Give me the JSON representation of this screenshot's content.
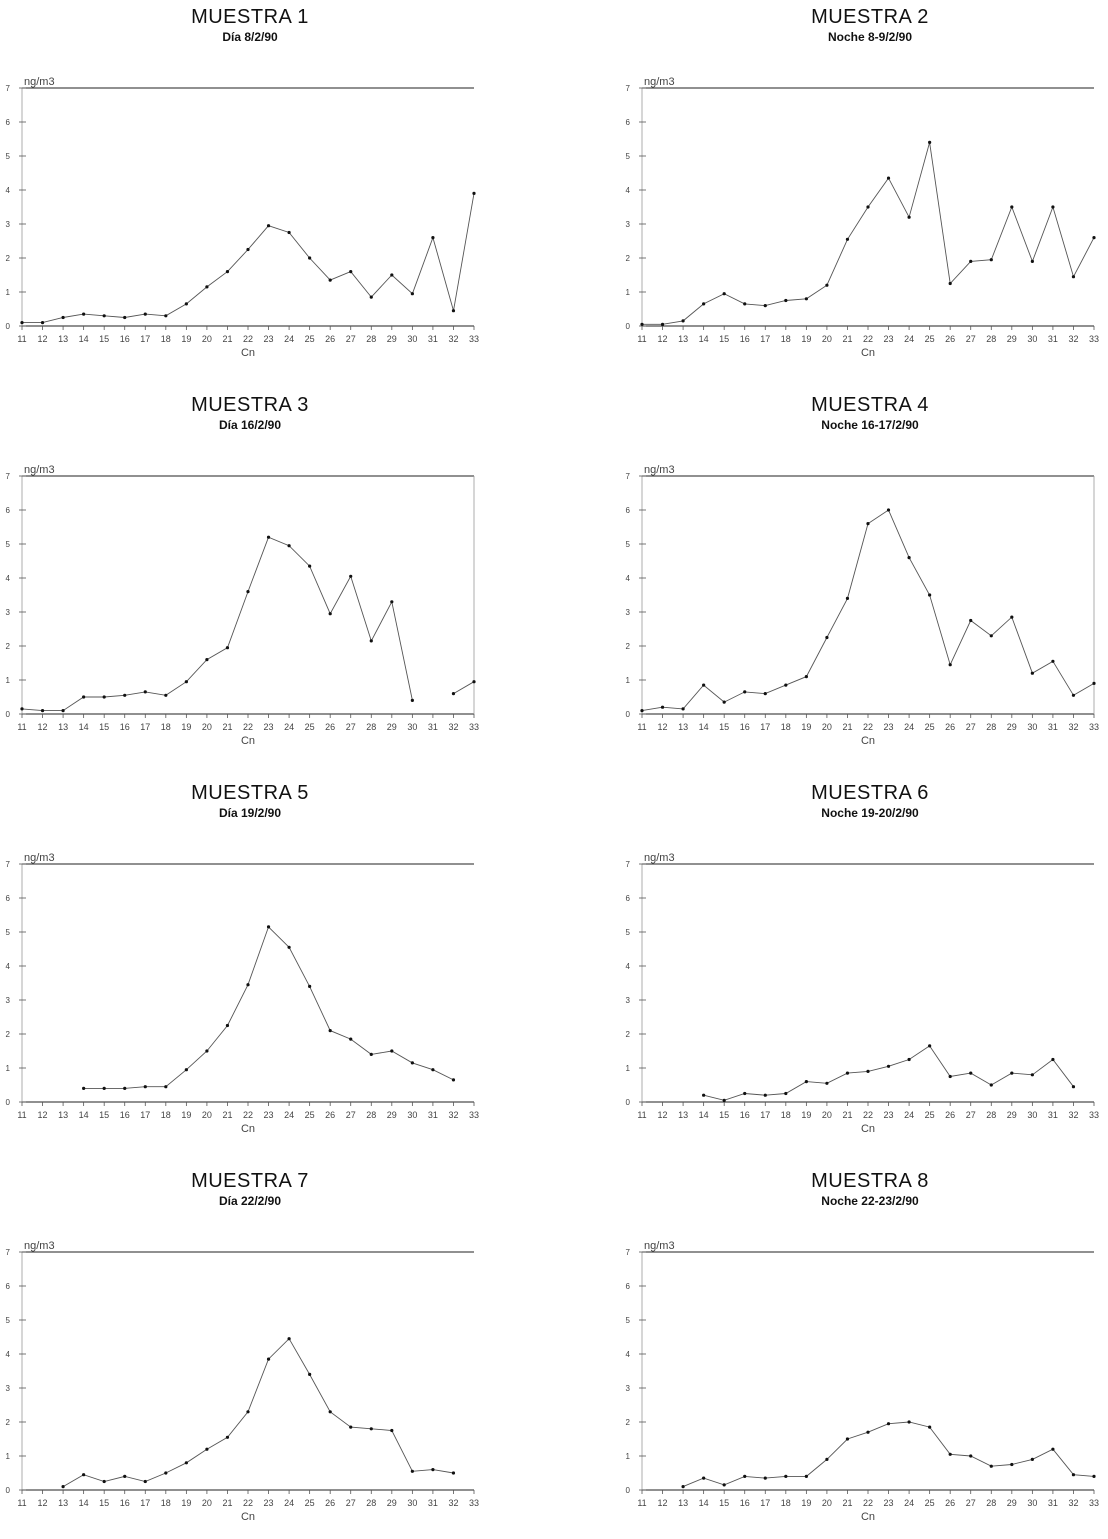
{
  "chart_data": [
    {
      "type": "line",
      "title": "MUESTRA 1",
      "subtitle": "Día 8/2/90",
      "ylabel": "ng/m3",
      "xlabel": "Cn",
      "ylim": [
        0,
        7
      ],
      "y_ticks": [
        "0",
        "1",
        "2",
        "3",
        "4",
        "5",
        "6",
        "7"
      ],
      "categories": [
        "11",
        "12",
        "13",
        "14",
        "15",
        "16",
        "17",
        "18",
        "19",
        "20",
        "21",
        "22",
        "23",
        "24",
        "25",
        "26",
        "27",
        "28",
        "29",
        "30",
        "31",
        "32",
        "33"
      ],
      "values": [
        0.1,
        0.1,
        0.25,
        0.35,
        0.3,
        0.25,
        0.35,
        0.3,
        0.65,
        1.15,
        1.6,
        2.25,
        2.95,
        2.75,
        2.0,
        1.35,
        1.6,
        0.85,
        1.5,
        0.95,
        2.6,
        0.45,
        3.9
      ],
      "frame": "partial"
    },
    {
      "type": "line",
      "title": "MUESTRA 2",
      "subtitle": "Noche 8-9/2/90",
      "ylabel": "ng/m3",
      "xlabel": "Cn",
      "ylim": [
        0,
        7
      ],
      "y_ticks": [
        "0",
        "1",
        "2",
        "3",
        "4",
        "5",
        "6",
        "7"
      ],
      "categories": [
        "11",
        "12",
        "13",
        "14",
        "15",
        "16",
        "17",
        "18",
        "19",
        "20",
        "21",
        "22",
        "23",
        "24",
        "25",
        "26",
        "27",
        "28",
        "29",
        "30",
        "31",
        "32",
        "33"
      ],
      "values": [
        0.05,
        0.05,
        0.15,
        0.65,
        0.95,
        0.65,
        0.6,
        0.75,
        0.8,
        1.2,
        2.55,
        3.5,
        4.35,
        3.2,
        5.4,
        1.25,
        1.9,
        1.95,
        3.5,
        1.9,
        3.5,
        1.45,
        2.6
      ],
      "frame": "partial"
    },
    {
      "type": "line",
      "title": "MUESTRA 3",
      "subtitle": "Día 16/2/90",
      "ylabel": "ng/m3",
      "xlabel": "Cn",
      "ylim": [
        0,
        7
      ],
      "y_ticks": [
        "0",
        "1",
        "2",
        "3",
        "4",
        "5",
        "6",
        "7"
      ],
      "categories": [
        "11",
        "12",
        "13",
        "14",
        "15",
        "16",
        "17",
        "18",
        "19",
        "20",
        "21",
        "22",
        "23",
        "24",
        "25",
        "26",
        "27",
        "28",
        "29",
        "30",
        "31",
        "32",
        "33"
      ],
      "values": [
        0.15,
        0.1,
        0.1,
        0.5,
        0.5,
        0.55,
        0.65,
        0.55,
        0.95,
        1.6,
        1.95,
        3.6,
        5.2,
        4.95,
        4.35,
        2.95,
        4.05,
        2.15,
        3.3,
        0.4,
        null,
        0.6,
        0.95
      ],
      "frame": "full"
    },
    {
      "type": "line",
      "title": "MUESTRA 4",
      "subtitle": "Noche 16-17/2/90",
      "ylabel": "ng/m3",
      "xlabel": "Cn",
      "ylim": [
        0,
        7
      ],
      "y_ticks": [
        "0",
        "1",
        "2",
        "3",
        "4",
        "5",
        "6",
        "7"
      ],
      "categories": [
        "11",
        "12",
        "13",
        "14",
        "15",
        "16",
        "17",
        "18",
        "19",
        "20",
        "21",
        "22",
        "23",
        "24",
        "25",
        "26",
        "27",
        "28",
        "29",
        "30",
        "31",
        "32",
        "33"
      ],
      "values": [
        0.1,
        0.2,
        0.15,
        0.85,
        0.35,
        0.65,
        0.6,
        0.85,
        1.1,
        2.25,
        3.4,
        5.6,
        6.0,
        4.6,
        3.5,
        1.45,
        2.75,
        2.3,
        2.85,
        1.2,
        1.55,
        0.55,
        0.9
      ],
      "frame": "full"
    },
    {
      "type": "line",
      "title": "MUESTRA 5",
      "subtitle": "Día 19/2/90",
      "ylabel": "ng/m3",
      "xlabel": "Cn",
      "ylim": [
        0,
        7
      ],
      "y_ticks": [
        "0",
        "1",
        "2",
        "3",
        "4",
        "5",
        "6",
        "7"
      ],
      "categories": [
        "11",
        "12",
        "13",
        "14",
        "15",
        "16",
        "17",
        "18",
        "19",
        "20",
        "21",
        "22",
        "23",
        "24",
        "25",
        "26",
        "27",
        "28",
        "29",
        "30",
        "31",
        "32",
        "33"
      ],
      "values": [
        null,
        null,
        null,
        0.4,
        0.4,
        0.4,
        0.45,
        0.45,
        0.95,
        1.5,
        2.25,
        3.45,
        5.15,
        4.55,
        3.4,
        2.1,
        1.85,
        1.4,
        1.5,
        1.15,
        0.95,
        0.65,
        null
      ],
      "frame": "partial"
    },
    {
      "type": "line",
      "title": "MUESTRA 6",
      "subtitle": "Noche 19-20/2/90",
      "ylabel": "ng/m3",
      "xlabel": "Cn",
      "ylim": [
        0,
        7
      ],
      "y_ticks": [
        "0",
        "1",
        "2",
        "3",
        "4",
        "5",
        "6",
        "7"
      ],
      "categories": [
        "11",
        "12",
        "13",
        "14",
        "15",
        "16",
        "17",
        "18",
        "19",
        "20",
        "21",
        "22",
        "23",
        "24",
        "25",
        "26",
        "27",
        "28",
        "29",
        "30",
        "31",
        "32",
        "33"
      ],
      "values": [
        null,
        null,
        null,
        0.2,
        0.05,
        0.25,
        0.2,
        0.25,
        0.6,
        0.55,
        0.85,
        0.9,
        1.05,
        1.25,
        1.65,
        0.75,
        0.85,
        0.5,
        0.85,
        0.8,
        1.25,
        0.45,
        null
      ],
      "frame": "partial"
    },
    {
      "type": "line",
      "title": "MUESTRA 7",
      "subtitle": "Día 22/2/90",
      "ylabel": "ng/m3",
      "xlabel": "Cn",
      "ylim": [
        0,
        7
      ],
      "y_ticks": [
        "0",
        "1",
        "2",
        "3",
        "4",
        "5",
        "6",
        "7"
      ],
      "categories": [
        "11",
        "12",
        "13",
        "14",
        "15",
        "16",
        "17",
        "18",
        "19",
        "20",
        "21",
        "22",
        "23",
        "24",
        "25",
        "26",
        "27",
        "28",
        "29",
        "30",
        "31",
        "32",
        "33"
      ],
      "values": [
        null,
        null,
        0.1,
        0.45,
        0.25,
        0.4,
        0.25,
        0.5,
        0.8,
        1.2,
        1.55,
        2.3,
        3.85,
        4.45,
        3.4,
        2.3,
        1.85,
        1.8,
        1.75,
        0.55,
        0.6,
        0.5,
        null
      ],
      "frame": "partial"
    },
    {
      "type": "line",
      "title": "MUESTRA 8",
      "subtitle": "Noche 22-23/2/90",
      "ylabel": "ng/m3",
      "xlabel": "Cn",
      "ylim": [
        0,
        7
      ],
      "y_ticks": [
        "0",
        "1",
        "2",
        "3",
        "4",
        "5",
        "6",
        "7"
      ],
      "categories": [
        "11",
        "12",
        "13",
        "14",
        "15",
        "16",
        "17",
        "18",
        "19",
        "20",
        "21",
        "22",
        "23",
        "24",
        "25",
        "26",
        "27",
        "28",
        "29",
        "30",
        "31",
        "32",
        "33"
      ],
      "values": [
        null,
        null,
        0.1,
        0.35,
        0.15,
        0.4,
        0.35,
        0.4,
        0.4,
        0.9,
        1.5,
        1.7,
        1.95,
        2.0,
        1.85,
        1.05,
        1.0,
        0.7,
        0.75,
        0.9,
        1.2,
        0.45,
        0.4
      ],
      "frame": "partial"
    }
  ]
}
